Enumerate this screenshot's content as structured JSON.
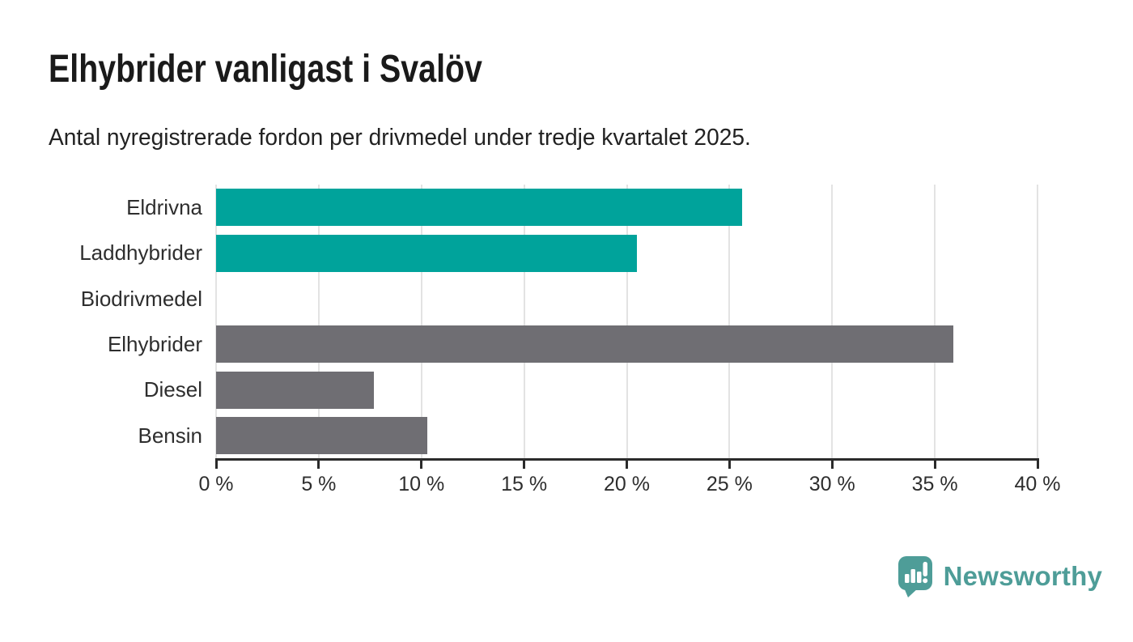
{
  "header": {
    "title": "Elhybrider vanligast i Svalöv",
    "subtitle": "Antal nyregistrerade fordon per drivmedel under tredje kvartalet 2025."
  },
  "chart_data": {
    "type": "bar",
    "orientation": "horizontal",
    "title": "Elhybrider vanligast i Svalöv",
    "subtitle": "Antal nyregistrerade fordon per drivmedel under tredje kvartalet 2025.",
    "categories": [
      "Eldrivna",
      "Laddhybrider",
      "Biodrivmedel",
      "Elhybrider",
      "Diesel",
      "Bensin"
    ],
    "values": [
      25.6,
      20.5,
      0,
      35.9,
      7.7,
      10.3
    ],
    "unit": "%",
    "bar_colors": [
      "#00A39B",
      "#00A39B",
      "#6F6E73",
      "#6F6E73",
      "#6F6E73",
      "#6F6E73"
    ],
    "xlim": [
      0,
      40
    ],
    "x_ticks": [
      0,
      5,
      10,
      15,
      20,
      25,
      30,
      35,
      40
    ],
    "x_tick_labels": [
      "0 %",
      "5 %",
      "10 %",
      "15 %",
      "20 %",
      "25 %",
      "30 %",
      "35 %",
      "40 %"
    ],
    "grid": true,
    "legend": false,
    "xlabel": "",
    "ylabel": ""
  },
  "footer": {
    "brand": "Newsworthy",
    "brand_color": "#4E9D98",
    "logo_icon": "bar-chart-speech-bubble-icon"
  },
  "colors": {
    "teal": "#00A39B",
    "gray": "#6F6E73",
    "axis": "#2B2B2B",
    "gridline": "#E3E3E3",
    "title_text": "#1A1A1A",
    "body_text": "#2E2E2E"
  }
}
